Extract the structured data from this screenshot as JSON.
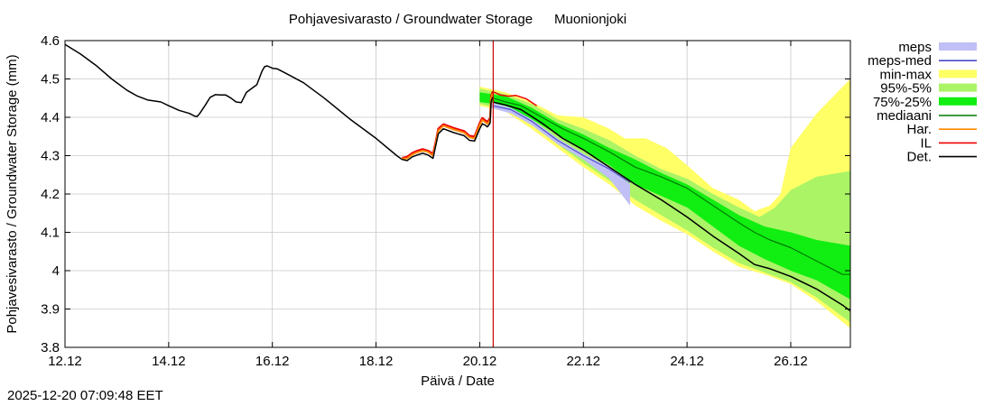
{
  "chart_data": {
    "type": "line",
    "title": "Pohjavesivarasto / Groundwater Storage",
    "location": "Muonionjoki",
    "xlabel": "Päivä / Date",
    "ylabel": "Pohjavesivarasto / Groundwater Storage (mm)",
    "x_unit": "day of December 2025",
    "xlim": [
      12,
      27.15
    ],
    "ylim": [
      3.8,
      4.6
    ],
    "x_ticks": [
      {
        "x": 12,
        "label": "12.12"
      },
      {
        "x": 14,
        "label": "14.12"
      },
      {
        "x": 16,
        "label": "16.12"
      },
      {
        "x": 18,
        "label": "18.12"
      },
      {
        "x": 20,
        "label": "20.12"
      },
      {
        "x": 22,
        "label": "22.12"
      },
      {
        "x": 24,
        "label": "24.12"
      },
      {
        "x": 26,
        "label": "26.12"
      }
    ],
    "y_ticks": [
      {
        "y": 3.8,
        "label": "3.8"
      },
      {
        "y": 3.9,
        "label": "3.9"
      },
      {
        "y": 4.0,
        "label": "4"
      },
      {
        "y": 4.1,
        "label": "4.1"
      },
      {
        "y": 4.2,
        "label": "4.2"
      },
      {
        "y": 4.3,
        "label": "4.3"
      },
      {
        "y": 4.4,
        "label": "4.4"
      },
      {
        "y": 4.5,
        "label": "4.5"
      },
      {
        "y": 4.6,
        "label": "4.6"
      }
    ],
    "grid": true,
    "forecast_start_x": 20.26,
    "legend_position": "right, outside plot",
    "colors": {
      "meps": "#c0c0f6",
      "meps_med": "#4c4cc8",
      "minmax": "#ffff66",
      "p95_5": "#aaf466",
      "p75_25": "#11ee11",
      "median": "#007a00",
      "har": "#ff8800",
      "il": "#ee0000",
      "det": "#000000",
      "forecast_line": "#cc0000",
      "grid": "#c8c8c8"
    },
    "legend": [
      {
        "key": "meps",
        "label": "meps",
        "kind": "band"
      },
      {
        "key": "meps_med",
        "label": "meps-med",
        "kind": "line"
      },
      {
        "key": "minmax",
        "label": "min-max",
        "kind": "band"
      },
      {
        "key": "p95_5",
        "label": "95%-5%",
        "kind": "band"
      },
      {
        "key": "p75_25",
        "label": "75%-25%",
        "kind": "band"
      },
      {
        "key": "median",
        "label": "mediaani",
        "kind": "line"
      },
      {
        "key": "har",
        "label": "Har.",
        "kind": "line"
      },
      {
        "key": "il",
        "label": "IL",
        "kind": "line"
      },
      {
        "key": "det",
        "label": "Det.",
        "kind": "line"
      }
    ],
    "series": {
      "observed": {
        "name": "Det. (history)",
        "points": [
          [
            12.0,
            4.59
          ],
          [
            12.3,
            4.565
          ],
          [
            12.6,
            4.535
          ],
          [
            12.9,
            4.5
          ],
          [
            13.2,
            4.47
          ],
          [
            13.4,
            4.455
          ],
          [
            13.6,
            4.445
          ],
          [
            13.85,
            4.44
          ],
          [
            14.0,
            4.43
          ],
          [
            14.2,
            4.418
          ],
          [
            14.4,
            4.41
          ],
          [
            14.5,
            4.403
          ],
          [
            14.55,
            4.402
          ],
          [
            14.6,
            4.41
          ],
          [
            14.7,
            4.43
          ],
          [
            14.8,
            4.452
          ],
          [
            14.9,
            4.459
          ],
          [
            15.0,
            4.458
          ],
          [
            15.1,
            4.458
          ],
          [
            15.2,
            4.45
          ],
          [
            15.3,
            4.44
          ],
          [
            15.4,
            4.438
          ],
          [
            15.5,
            4.465
          ],
          [
            15.6,
            4.475
          ],
          [
            15.7,
            4.485
          ],
          [
            15.8,
            4.52
          ],
          [
            15.85,
            4.532
          ],
          [
            15.9,
            4.534
          ],
          [
            16.0,
            4.528
          ],
          [
            16.1,
            4.526
          ],
          [
            16.3,
            4.512
          ],
          [
            16.6,
            4.49
          ],
          [
            17.0,
            4.45
          ],
          [
            17.5,
            4.395
          ],
          [
            18.0,
            4.345
          ],
          [
            18.4,
            4.3
          ],
          [
            18.5,
            4.29
          ],
          [
            18.6,
            4.287
          ],
          [
            18.7,
            4.297
          ],
          [
            18.8,
            4.302
          ],
          [
            18.9,
            4.306
          ],
          [
            19.0,
            4.302
          ],
          [
            19.1,
            4.293
          ],
          [
            19.15,
            4.325
          ],
          [
            19.2,
            4.357
          ],
          [
            19.3,
            4.37
          ],
          [
            19.5,
            4.36
          ],
          [
            19.7,
            4.352
          ],
          [
            19.8,
            4.34
          ],
          [
            19.9,
            4.338
          ],
          [
            20.0,
            4.37
          ],
          [
            20.05,
            4.383
          ],
          [
            20.1,
            4.38
          ],
          [
            20.15,
            4.375
          ],
          [
            20.2,
            4.385
          ],
          [
            20.22,
            4.44
          ],
          [
            20.25,
            4.453
          ]
        ]
      },
      "har_hist": {
        "name": "Har.",
        "points": [
          [
            18.5,
            4.292
          ],
          [
            18.6,
            4.293
          ],
          [
            18.7,
            4.303
          ],
          [
            18.8,
            4.309
          ],
          [
            18.9,
            4.313
          ],
          [
            19.0,
            4.31
          ],
          [
            19.1,
            4.3
          ],
          [
            19.15,
            4.33
          ],
          [
            19.2,
            4.365
          ],
          [
            19.3,
            4.378
          ],
          [
            19.5,
            4.368
          ],
          [
            19.7,
            4.36
          ],
          [
            19.8,
            4.348
          ],
          [
            19.9,
            4.345
          ],
          [
            20.0,
            4.38
          ],
          [
            20.05,
            4.393
          ],
          [
            20.1,
            4.388
          ],
          [
            20.15,
            4.383
          ],
          [
            20.2,
            4.393
          ],
          [
            20.22,
            4.45
          ],
          [
            20.25,
            4.462
          ]
        ]
      },
      "il_hist": {
        "name": "IL",
        "points": [
          [
            18.5,
            4.294
          ],
          [
            18.6,
            4.297
          ],
          [
            18.7,
            4.307
          ],
          [
            18.8,
            4.313
          ],
          [
            18.9,
            4.317
          ],
          [
            19.0,
            4.313
          ],
          [
            19.1,
            4.305
          ],
          [
            19.15,
            4.335
          ],
          [
            19.2,
            4.37
          ],
          [
            19.3,
            4.382
          ],
          [
            19.5,
            4.372
          ],
          [
            19.7,
            4.364
          ],
          [
            19.8,
            4.352
          ],
          [
            19.9,
            4.35
          ],
          [
            20.0,
            4.385
          ],
          [
            20.05,
            4.398
          ],
          [
            20.1,
            4.393
          ],
          [
            20.15,
            4.388
          ],
          [
            20.2,
            4.398
          ],
          [
            20.22,
            4.455
          ],
          [
            20.25,
            4.467
          ]
        ]
      },
      "il_forecast": {
        "name": "IL",
        "points": [
          [
            20.25,
            4.467
          ],
          [
            20.4,
            4.458
          ],
          [
            20.55,
            4.455
          ],
          [
            20.7,
            4.457
          ],
          [
            20.9,
            4.448
          ],
          [
            21.1,
            4.43
          ]
        ]
      },
      "det_forecast": {
        "name": "Det.",
        "points": [
          [
            20.25,
            4.44
          ],
          [
            20.5,
            4.432
          ],
          [
            20.8,
            4.42
          ],
          [
            21.2,
            4.385
          ],
          [
            21.6,
            4.345
          ],
          [
            22.0,
            4.315
          ],
          [
            22.5,
            4.27
          ],
          [
            23.0,
            4.225
          ],
          [
            23.5,
            4.185
          ],
          [
            24.0,
            4.14
          ],
          [
            24.5,
            4.09
          ],
          [
            25.0,
            4.045
          ],
          [
            25.3,
            4.016
          ],
          [
            25.6,
            4.005
          ],
          [
            26.0,
            3.985
          ],
          [
            26.5,
            3.952
          ],
          [
            27.0,
            3.91
          ],
          [
            27.15,
            3.895
          ]
        ]
      },
      "median": {
        "name": "mediaani",
        "points": [
          [
            20.25,
            4.45
          ],
          [
            20.5,
            4.44
          ],
          [
            20.8,
            4.43
          ],
          [
            21.2,
            4.4
          ],
          [
            21.6,
            4.37
          ],
          [
            22.0,
            4.345
          ],
          [
            22.5,
            4.31
          ],
          [
            23.0,
            4.27
          ],
          [
            23.5,
            4.245
          ],
          [
            24.0,
            4.215
          ],
          [
            24.5,
            4.17
          ],
          [
            25.0,
            4.125
          ],
          [
            25.3,
            4.1
          ],
          [
            25.6,
            4.08
          ],
          [
            26.0,
            4.06
          ],
          [
            26.5,
            4.025
          ],
          [
            27.0,
            3.99
          ],
          [
            27.15,
            3.99
          ]
        ]
      },
      "meps_med": {
        "name": "meps-med",
        "points": [
          [
            20.25,
            4.43
          ],
          [
            20.6,
            4.42
          ],
          [
            21.0,
            4.39
          ],
          [
            21.5,
            4.34
          ],
          [
            22.0,
            4.3
          ],
          [
            22.5,
            4.265
          ],
          [
            22.9,
            4.23
          ]
        ]
      }
    },
    "bands": {
      "minmax": {
        "upper": [
          [
            20.0,
            4.48
          ],
          [
            20.5,
            4.465
          ],
          [
            21.0,
            4.44
          ],
          [
            21.5,
            4.405
          ],
          [
            22.0,
            4.4
          ],
          [
            22.5,
            4.37
          ],
          [
            22.8,
            4.345
          ],
          [
            23.2,
            4.345
          ],
          [
            23.6,
            4.32
          ],
          [
            24.0,
            4.275
          ],
          [
            24.5,
            4.215
          ],
          [
            25.0,
            4.185
          ],
          [
            25.3,
            4.155
          ],
          [
            25.6,
            4.17
          ],
          [
            25.8,
            4.2
          ],
          [
            26.0,
            4.32
          ],
          [
            26.5,
            4.41
          ],
          [
            27.15,
            4.5
          ]
        ],
        "lower": [
          [
            20.0,
            4.43
          ],
          [
            20.5,
            4.415
          ],
          [
            21.0,
            4.37
          ],
          [
            21.5,
            4.32
          ],
          [
            22.0,
            4.27
          ],
          [
            22.5,
            4.225
          ],
          [
            23.0,
            4.17
          ],
          [
            23.5,
            4.13
          ],
          [
            24.0,
            4.095
          ],
          [
            24.5,
            4.05
          ],
          [
            25.0,
            4.01
          ],
          [
            25.5,
            3.99
          ],
          [
            26.0,
            3.965
          ],
          [
            26.5,
            3.92
          ],
          [
            27.15,
            3.85
          ]
        ]
      },
      "p95_5": {
        "upper": [
          [
            20.0,
            4.475
          ],
          [
            20.5,
            4.46
          ],
          [
            21.0,
            4.435
          ],
          [
            21.5,
            4.395
          ],
          [
            22.0,
            4.37
          ],
          [
            22.5,
            4.34
          ],
          [
            23.0,
            4.3
          ],
          [
            23.5,
            4.265
          ],
          [
            24.0,
            4.24
          ],
          [
            24.5,
            4.2
          ],
          [
            25.0,
            4.165
          ],
          [
            25.4,
            4.14
          ],
          [
            25.7,
            4.165
          ],
          [
            26.0,
            4.21
          ],
          [
            26.5,
            4.245
          ],
          [
            27.15,
            4.26
          ]
        ],
        "lower": [
          [
            20.0,
            4.435
          ],
          [
            20.5,
            4.42
          ],
          [
            21.0,
            4.38
          ],
          [
            21.5,
            4.33
          ],
          [
            22.0,
            4.28
          ],
          [
            22.5,
            4.235
          ],
          [
            23.0,
            4.185
          ],
          [
            23.5,
            4.145
          ],
          [
            24.0,
            4.105
          ],
          [
            24.5,
            4.06
          ],
          [
            25.0,
            4.02
          ],
          [
            25.5,
            3.995
          ],
          [
            26.0,
            3.97
          ],
          [
            26.5,
            3.93
          ],
          [
            27.15,
            3.865
          ]
        ]
      },
      "p75_25": {
        "upper": [
          [
            20.0,
            4.465
          ],
          [
            20.5,
            4.455
          ],
          [
            21.0,
            4.425
          ],
          [
            21.5,
            4.385
          ],
          [
            22.0,
            4.355
          ],
          [
            22.5,
            4.32
          ],
          [
            23.0,
            4.29
          ],
          [
            23.5,
            4.255
          ],
          [
            24.0,
            4.225
          ],
          [
            24.5,
            4.185
          ],
          [
            25.0,
            4.145
          ],
          [
            25.5,
            4.115
          ],
          [
            26.0,
            4.1
          ],
          [
            26.5,
            4.08
          ],
          [
            27.15,
            4.065
          ]
        ],
        "lower": [
          [
            20.0,
            4.44
          ],
          [
            20.5,
            4.43
          ],
          [
            21.0,
            4.395
          ],
          [
            21.5,
            4.355
          ],
          [
            22.0,
            4.315
          ],
          [
            22.5,
            4.275
          ],
          [
            23.0,
            4.225
          ],
          [
            23.5,
            4.195
          ],
          [
            24.0,
            4.165
          ],
          [
            24.5,
            4.115
          ],
          [
            25.0,
            4.065
          ],
          [
            25.5,
            4.03
          ],
          [
            26.0,
            4.0
          ],
          [
            26.5,
            3.975
          ],
          [
            27.15,
            3.925
          ]
        ]
      },
      "meps": {
        "upper": [
          [
            20.2,
            4.44
          ],
          [
            20.6,
            4.425
          ],
          [
            21.0,
            4.395
          ],
          [
            21.5,
            4.345
          ],
          [
            22.0,
            4.305
          ],
          [
            22.5,
            4.27
          ],
          [
            22.9,
            4.225
          ]
        ],
        "lower": [
          [
            20.2,
            4.425
          ],
          [
            20.6,
            4.41
          ],
          [
            21.0,
            4.38
          ],
          [
            21.5,
            4.33
          ],
          [
            22.0,
            4.29
          ],
          [
            22.5,
            4.24
          ],
          [
            22.9,
            4.17
          ]
        ]
      }
    }
  },
  "footer": {
    "timestamp": "2025-12-20 07:09:48 EET"
  }
}
